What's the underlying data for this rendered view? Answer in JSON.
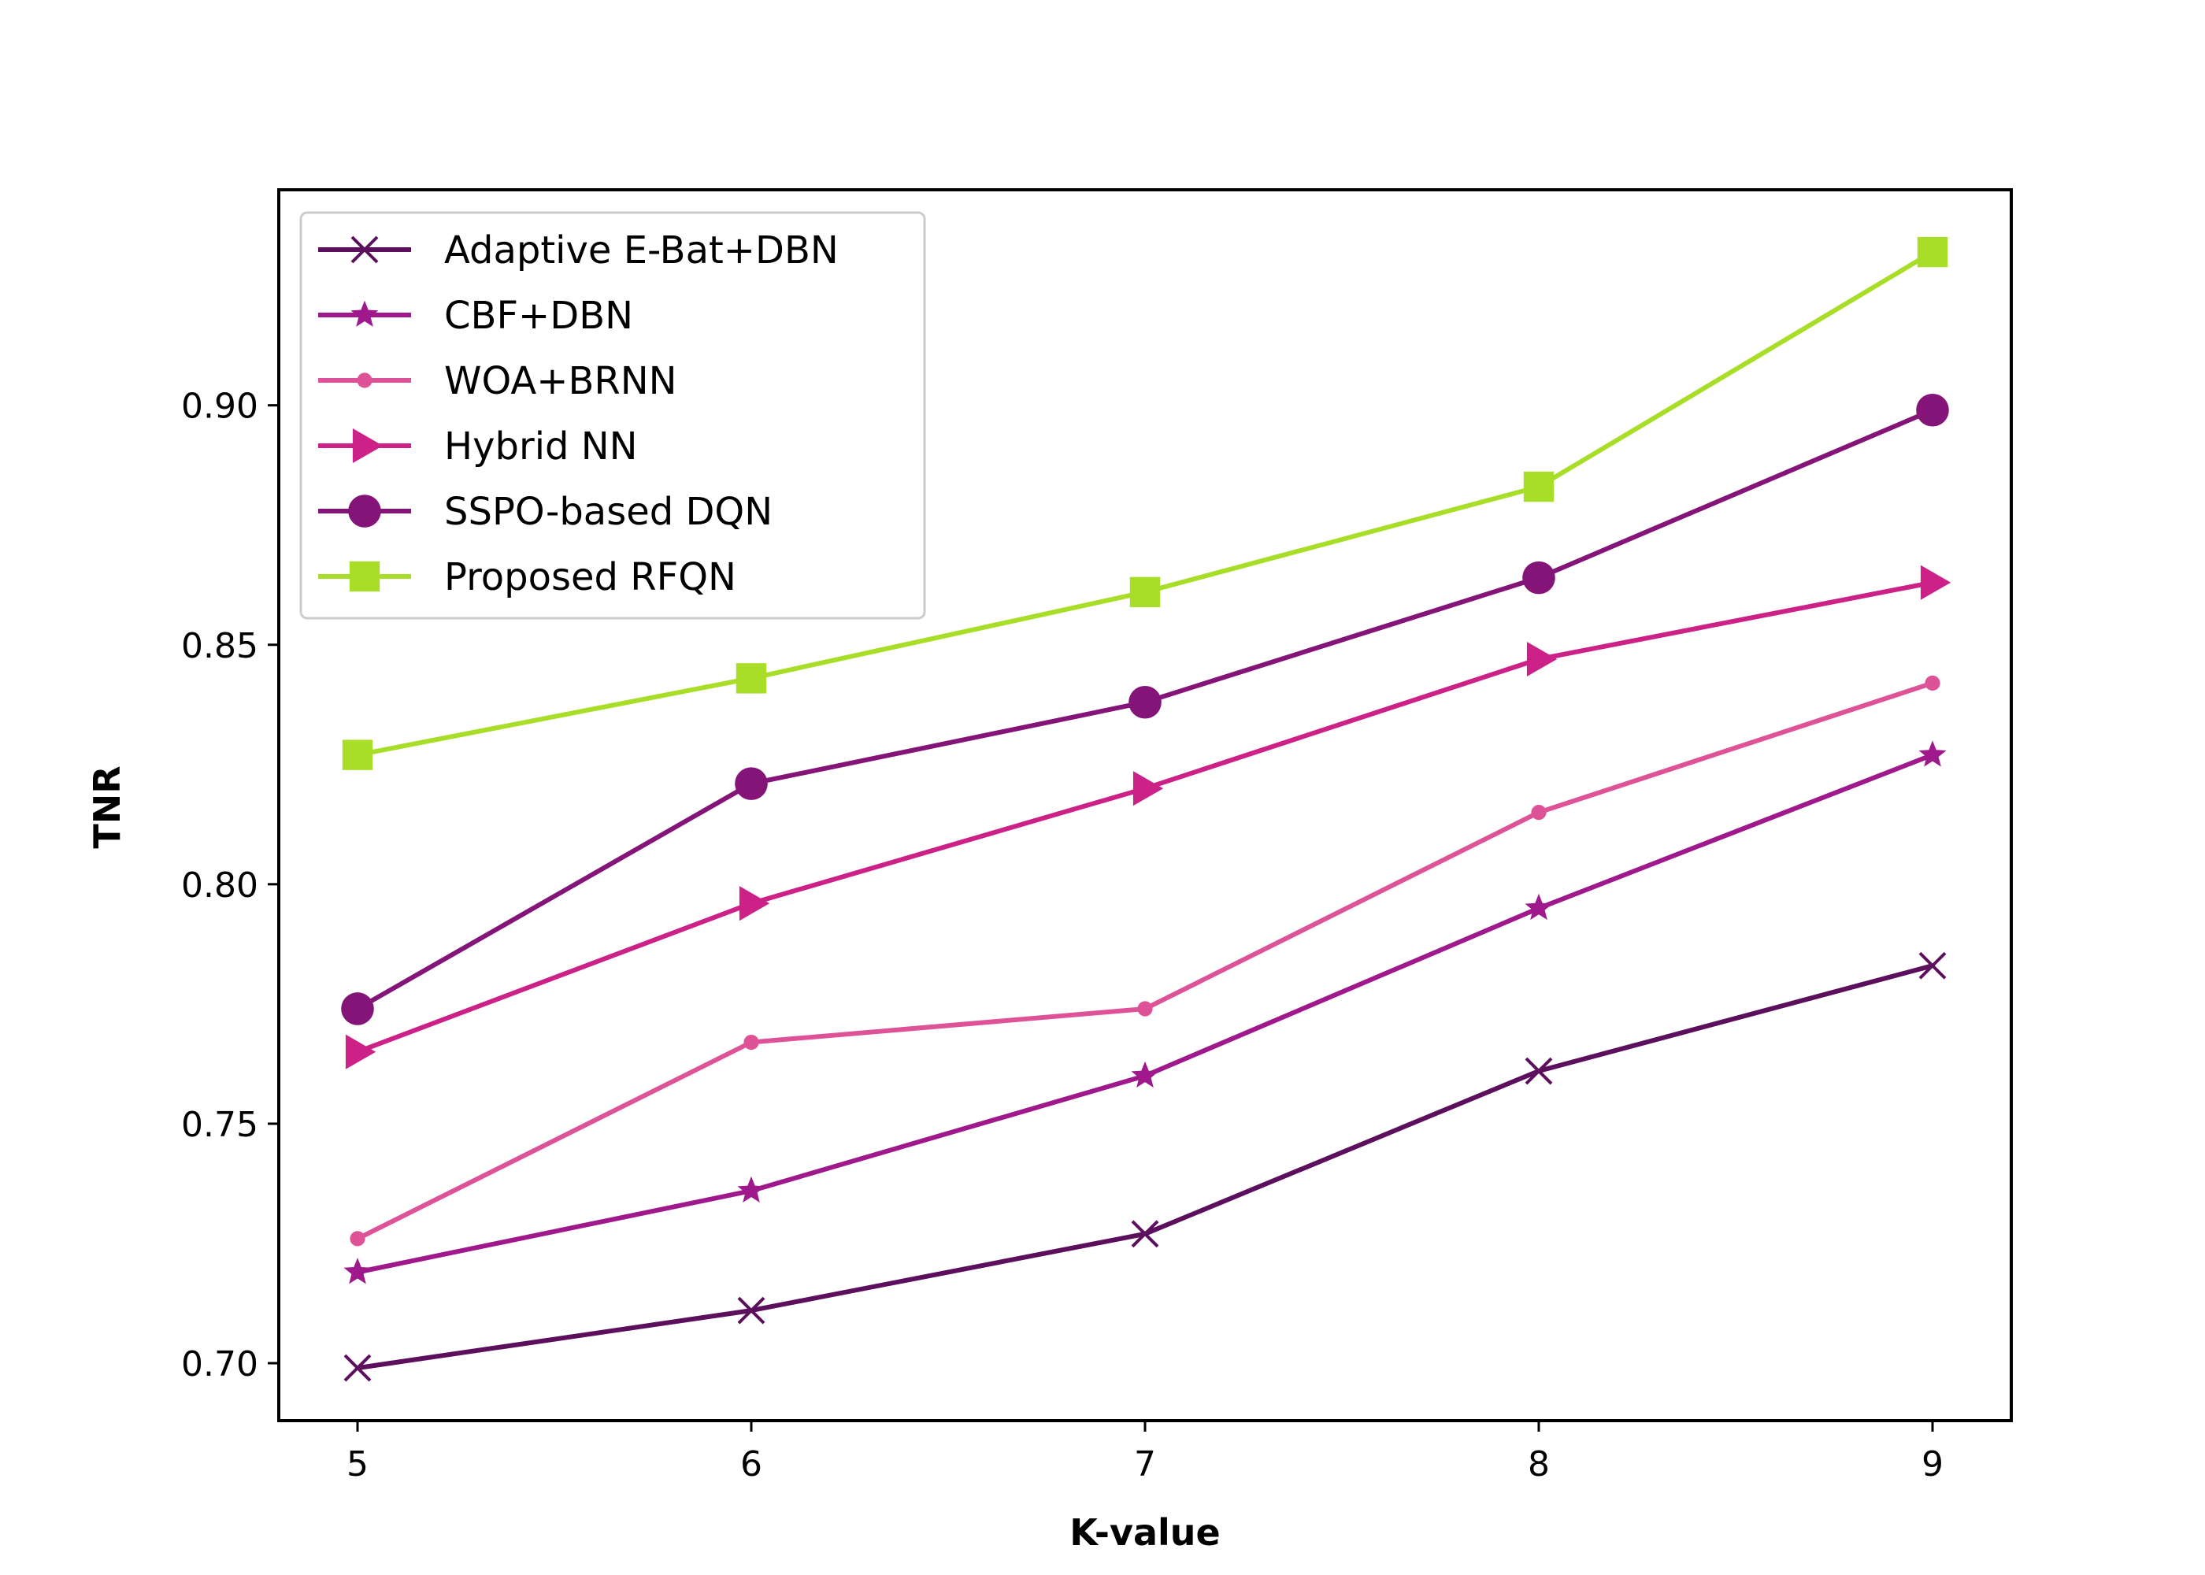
{
  "chart_data": {
    "type": "line",
    "title": "",
    "xlabel": "K-value",
    "ylabel": "TNR",
    "x": [
      5,
      6,
      7,
      8,
      9
    ],
    "xlim": [
      4.8,
      9.2
    ],
    "ylim": [
      0.688,
      0.945
    ],
    "xticks": [
      "5",
      "6",
      "7",
      "8",
      "9"
    ],
    "yticks": [
      "0.70",
      "0.75",
      "0.80",
      "0.85",
      "0.90"
    ],
    "ytick_values": [
      0.7,
      0.75,
      0.8,
      0.85,
      0.9
    ],
    "grid": false,
    "legend_position": "upper-left",
    "series": [
      {
        "name": "Adaptive E-Bat+DBN",
        "color": "#5c0f5c",
        "marker": "x",
        "values": [
          0.699,
          0.711,
          0.727,
          0.761,
          0.783
        ]
      },
      {
        "name": "CBF+DBN",
        "color": "#a0198c",
        "marker": "star",
        "values": [
          0.719,
          0.736,
          0.76,
          0.795,
          0.827
        ]
      },
      {
        "name": "WOA+BRNN",
        "color": "#de5397",
        "marker": "dot",
        "values": [
          0.726,
          0.767,
          0.774,
          0.815,
          0.842
        ]
      },
      {
        "name": "Hybrid NN",
        "color": "#cc2288",
        "marker": "triangle-right",
        "values": [
          0.765,
          0.796,
          0.82,
          0.847,
          0.863
        ]
      },
      {
        "name": "SSPO-based DQN",
        "color": "#841478",
        "marker": "circle",
        "values": [
          0.774,
          0.821,
          0.838,
          0.864,
          0.899
        ]
      },
      {
        "name": "Proposed RFQN",
        "color": "#a8dd28",
        "marker": "square",
        "values": [
          0.827,
          0.843,
          0.861,
          0.883,
          0.932
        ]
      }
    ]
  }
}
